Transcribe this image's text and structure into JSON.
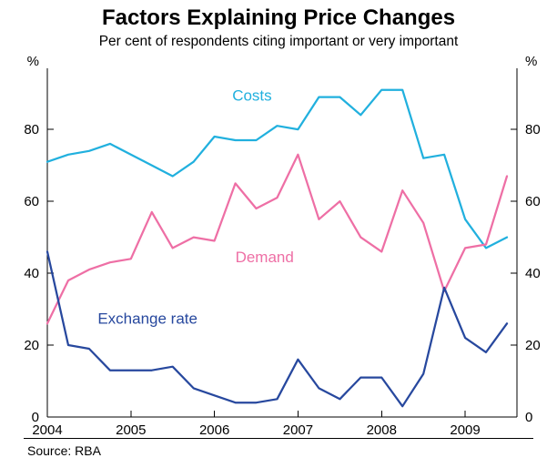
{
  "header": {
    "title": "Factors Explaining Price Changes",
    "subtitle": "Per cent of respondents citing important or very important"
  },
  "footer": {
    "source": "Source: RBA"
  },
  "chart_data": {
    "type": "line",
    "title": "Factors Explaining Price Changes",
    "subtitle": "Per cent of respondents citing important or very important",
    "y_unit_left": "%",
    "y_unit_right": "%",
    "grid": false,
    "legend_position": "inline-labels",
    "xlim": [
      2004.0,
      2009.62
    ],
    "ylim": [
      0,
      97
    ],
    "yticks": [
      0,
      20,
      40,
      60,
      80
    ],
    "xticks": [
      2004,
      2005,
      2006,
      2007,
      2008,
      2009
    ],
    "x": [
      2004.0,
      2004.25,
      2004.5,
      2004.75,
      2005.0,
      2005.25,
      2005.5,
      2005.75,
      2006.0,
      2006.25,
      2006.5,
      2006.75,
      2007.0,
      2007.25,
      2007.5,
      2007.75,
      2008.0,
      2008.25,
      2008.5,
      2008.75,
      2009.0,
      2009.25,
      2009.5
    ],
    "series": [
      {
        "name": "Costs",
        "color": "#21B0DE",
        "values": [
          71,
          73,
          74,
          76,
          73,
          70,
          67,
          71,
          78,
          77,
          77,
          81,
          80,
          89,
          89,
          84,
          91,
          91,
          72,
          73,
          55,
          47,
          50
        ],
        "label": {
          "x": 2006.45,
          "y": 88
        }
      },
      {
        "name": "Demand",
        "color": "#EE6FA5",
        "values": [
          26,
          38,
          41,
          43,
          44,
          57,
          47,
          50,
          49,
          65,
          58,
          61,
          73,
          55,
          60,
          50,
          46,
          63,
          54,
          35,
          47,
          48,
          67
        ],
        "label": {
          "x": 2006.6,
          "y": 43
        }
      },
      {
        "name": "Exchange rate",
        "color": "#27489E",
        "values": [
          46,
          20,
          19,
          13,
          13,
          13,
          14,
          8,
          6,
          4,
          4,
          5,
          16,
          8,
          5,
          11,
          11,
          3,
          12,
          36,
          22,
          18,
          26
        ],
        "label": {
          "x": 2005.2,
          "y": 26
        }
      }
    ],
    "source": "RBA"
  }
}
